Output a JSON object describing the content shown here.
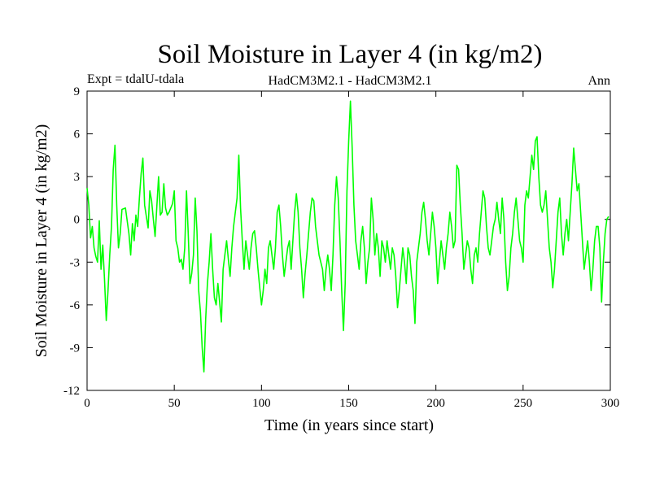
{
  "chart_data": {
    "type": "line",
    "title": "Soil Moisture in Layer 4 (in kg/m2)",
    "subtitle_left": "Expt = tdalU-tdala",
    "subtitle_center": "HadCM3M2.1 - HadCM3M2.1",
    "subtitle_right": "Ann",
    "xlabel": "Time (in years since start)",
    "ylabel": "Soil Moisture in Layer 4 (in kg/m2)",
    "xlim": [
      0,
      300
    ],
    "ylim": [
      -12,
      9
    ],
    "xticks": [
      0,
      50,
      100,
      150,
      200,
      250,
      300
    ],
    "xtick_labels": [
      "0",
      "50",
      "100",
      "150",
      "200",
      "250",
      "300"
    ],
    "yticks": [
      -12,
      -9,
      -6,
      -3,
      0,
      3,
      6,
      9
    ],
    "ytick_labels": [
      "-12",
      "-9",
      "-6",
      "-3",
      "0",
      "3",
      "6",
      "9"
    ],
    "grid": false,
    "line_color": "#00ff00",
    "series": [
      {
        "x": [
          0,
          1,
          2,
          3,
          4,
          5,
          6,
          7,
          8,
          9,
          10,
          11,
          12,
          13,
          14,
          15,
          16,
          17,
          18,
          19,
          20,
          22,
          24,
          25,
          26,
          27,
          28,
          29,
          30,
          31,
          32,
          33,
          34,
          35,
          36,
          37,
          38,
          39,
          40,
          41,
          42,
          43,
          44,
          45,
          46,
          47,
          48,
          49,
          50,
          51,
          52,
          53,
          54,
          55,
          56,
          57,
          58,
          59,
          60,
          61,
          62,
          63,
          64,
          65,
          66,
          67,
          68,
          69,
          70,
          71,
          72,
          73,
          74,
          75,
          76,
          77,
          78,
          79,
          80,
          81,
          82,
          83,
          84,
          85,
          86,
          87,
          88,
          89,
          90,
          91,
          92,
          93,
          94,
          95,
          96,
          97,
          98,
          99,
          100,
          101,
          102,
          103,
          104,
          105,
          106,
          107,
          108,
          109,
          110,
          111,
          112,
          113,
          114,
          115,
          116,
          117,
          118,
          119,
          120,
          121,
          122,
          123,
          124,
          125,
          126,
          127,
          128,
          129,
          130,
          131,
          132,
          133,
          134,
          135,
          136,
          137,
          138,
          139,
          140,
          141,
          142,
          143,
          144,
          145,
          146,
          147,
          148,
          149,
          150,
          151,
          152,
          153,
          154,
          155,
          156,
          157,
          158,
          159,
          160,
          161,
          162,
          163,
          164,
          165,
          166,
          167,
          168,
          169,
          170,
          171,
          172,
          173,
          174,
          175,
          176,
          177,
          178,
          179,
          180,
          181,
          182,
          183,
          184,
          185,
          186,
          187,
          188,
          189,
          190,
          191,
          192,
          193,
          194,
          195,
          196,
          197,
          198,
          199,
          200,
          201,
          202,
          203,
          204,
          205,
          206,
          207,
          208,
          209,
          210,
          211,
          212,
          213,
          214,
          215,
          216,
          217,
          218,
          219,
          220,
          221,
          222,
          223,
          224,
          225,
          226,
          227,
          228,
          229,
          230,
          231,
          232,
          233,
          234,
          235,
          236,
          237,
          238,
          239,
          240,
          241,
          242,
          243,
          244,
          245,
          246,
          247,
          248,
          249,
          250,
          251,
          252,
          253,
          254,
          255,
          256,
          257,
          258,
          259,
          260,
          261,
          262,
          263,
          264,
          265,
          266,
          267,
          268,
          269,
          270,
          271,
          272,
          273,
          274,
          275,
          276,
          277,
          278,
          279,
          280,
          281,
          282,
          283,
          284,
          285,
          286,
          287,
          288,
          289,
          290,
          291,
          292,
          293,
          294,
          295,
          296,
          297,
          298,
          299
        ],
        "y": [
          2.2,
          1.0,
          -1.3,
          -0.5,
          -2.0,
          -2.6,
          -3.0,
          -0.1,
          -3.5,
          -1.8,
          -4.2,
          -7.1,
          -5.0,
          -2.5,
          -0.5,
          3.5,
          5.2,
          1.0,
          -2.0,
          -1.0,
          0.7,
          0.8,
          -1.0,
          -2.5,
          -0.3,
          -1.5,
          0.3,
          -0.5,
          1.5,
          3.2,
          4.3,
          1.0,
          0.2,
          -0.6,
          2.0,
          1.3,
          0.0,
          -1.2,
          0.9,
          3.0,
          0.3,
          0.5,
          2.5,
          0.8,
          0.3,
          0.5,
          0.8,
          1.1,
          2.0,
          -1.5,
          -2.0,
          -3.0,
          -2.8,
          -3.5,
          -2.0,
          2.0,
          -1.0,
          -4.5,
          -3.8,
          -2.5,
          1.5,
          -0.8,
          -5.0,
          -6.5,
          -9.0,
          -10.7,
          -7.0,
          -4.5,
          -3.0,
          -1.0,
          -3.5,
          -5.5,
          -6.0,
          -4.5,
          -5.8,
          -7.2,
          -3.5,
          -2.5,
          -1.5,
          -2.8,
          -4.0,
          -2.0,
          -0.5,
          0.5,
          1.5,
          4.5,
          0.8,
          -1.5,
          -3.5,
          -1.5,
          -2.5,
          -3.5,
          -2.0,
          -1.0,
          -0.8,
          -2.0,
          -3.5,
          -4.8,
          -6.0,
          -5.0,
          -3.5,
          -4.5,
          -2.0,
          -1.5,
          -2.5,
          -3.5,
          -2.0,
          0.5,
          1.0,
          -0.5,
          -2.5,
          -4.0,
          -3.0,
          -2.0,
          -1.5,
          -3.5,
          -1.5,
          0.5,
          1.8,
          0.5,
          -2.0,
          -3.5,
          -5.5,
          -3.8,
          -2.5,
          -1.0,
          0.5,
          1.5,
          1.3,
          -0.5,
          -1.5,
          -2.5,
          -3.0,
          -3.5,
          -5.0,
          -3.5,
          -2.5,
          -3.5,
          -5.0,
          -2.5,
          1.0,
          3.0,
          1.5,
          -1.5,
          -5.0,
          -7.8,
          -4.5,
          2.0,
          5.5,
          8.3,
          5.0,
          1.0,
          -1.5,
          -2.5,
          -3.5,
          -1.5,
          -0.5,
          -2.0,
          -4.5,
          -3.0,
          -2.0,
          1.5,
          0.0,
          -2.5,
          -1.0,
          -2.0,
          -4.0,
          -1.5,
          -2.0,
          -3.0,
          -1.5,
          -2.5,
          -3.5,
          -2.0,
          -2.5,
          -4.0,
          -6.2,
          -5.0,
          -3.5,
          -2.0,
          -3.0,
          -4.5,
          -2.0,
          -2.5,
          -4.0,
          -5.0,
          -7.3,
          -3.0,
          -2.0,
          -1.0,
          0.5,
          1.2,
          0.0,
          -1.5,
          -2.5,
          -1.0,
          0.5,
          -0.5,
          -2.0,
          -4.5,
          -3.0,
          -1.5,
          -2.5,
          -3.5,
          -2.0,
          -1.0,
          0.5,
          -0.5,
          -2.0,
          -1.5,
          3.8,
          3.5,
          1.0,
          -1.0,
          -3.5,
          -2.5,
          -1.5,
          -2.0,
          -3.5,
          -4.5,
          -2.5,
          -2.0,
          -3.0,
          -1.0,
          0.5,
          2.0,
          1.5,
          -0.5,
          -2.0,
          -2.5,
          -1.5,
          -0.5,
          0.0,
          1.2,
          0.0,
          -1.0,
          1.5,
          0.0,
          -3.0,
          -5.0,
          -4.0,
          -2.0,
          -1.0,
          0.5,
          1.5,
          0.0,
          -1.5,
          -2.0,
          -3.0,
          1.0,
          2.0,
          1.5,
          3.0,
          4.5,
          3.5,
          5.5,
          5.8,
          3.0,
          1.0,
          0.5,
          1.0,
          2.0,
          0.0,
          -2.0,
          -3.0,
          -4.8,
          -3.5,
          -1.5,
          0.5,
          1.5,
          -1.0,
          -2.5,
          -1.0,
          0.0,
          -1.5,
          0.5,
          2.5,
          5.0,
          3.5,
          2.0,
          2.5,
          0.5,
          -1.5,
          -3.5,
          -2.5,
          -1.5,
          -3.0,
          -5.0,
          -3.5,
          -1.5,
          -0.5,
          -0.5,
          -2.0,
          -5.8,
          -3.0,
          -1.0,
          0.0,
          0.2
        ]
      }
    ]
  }
}
